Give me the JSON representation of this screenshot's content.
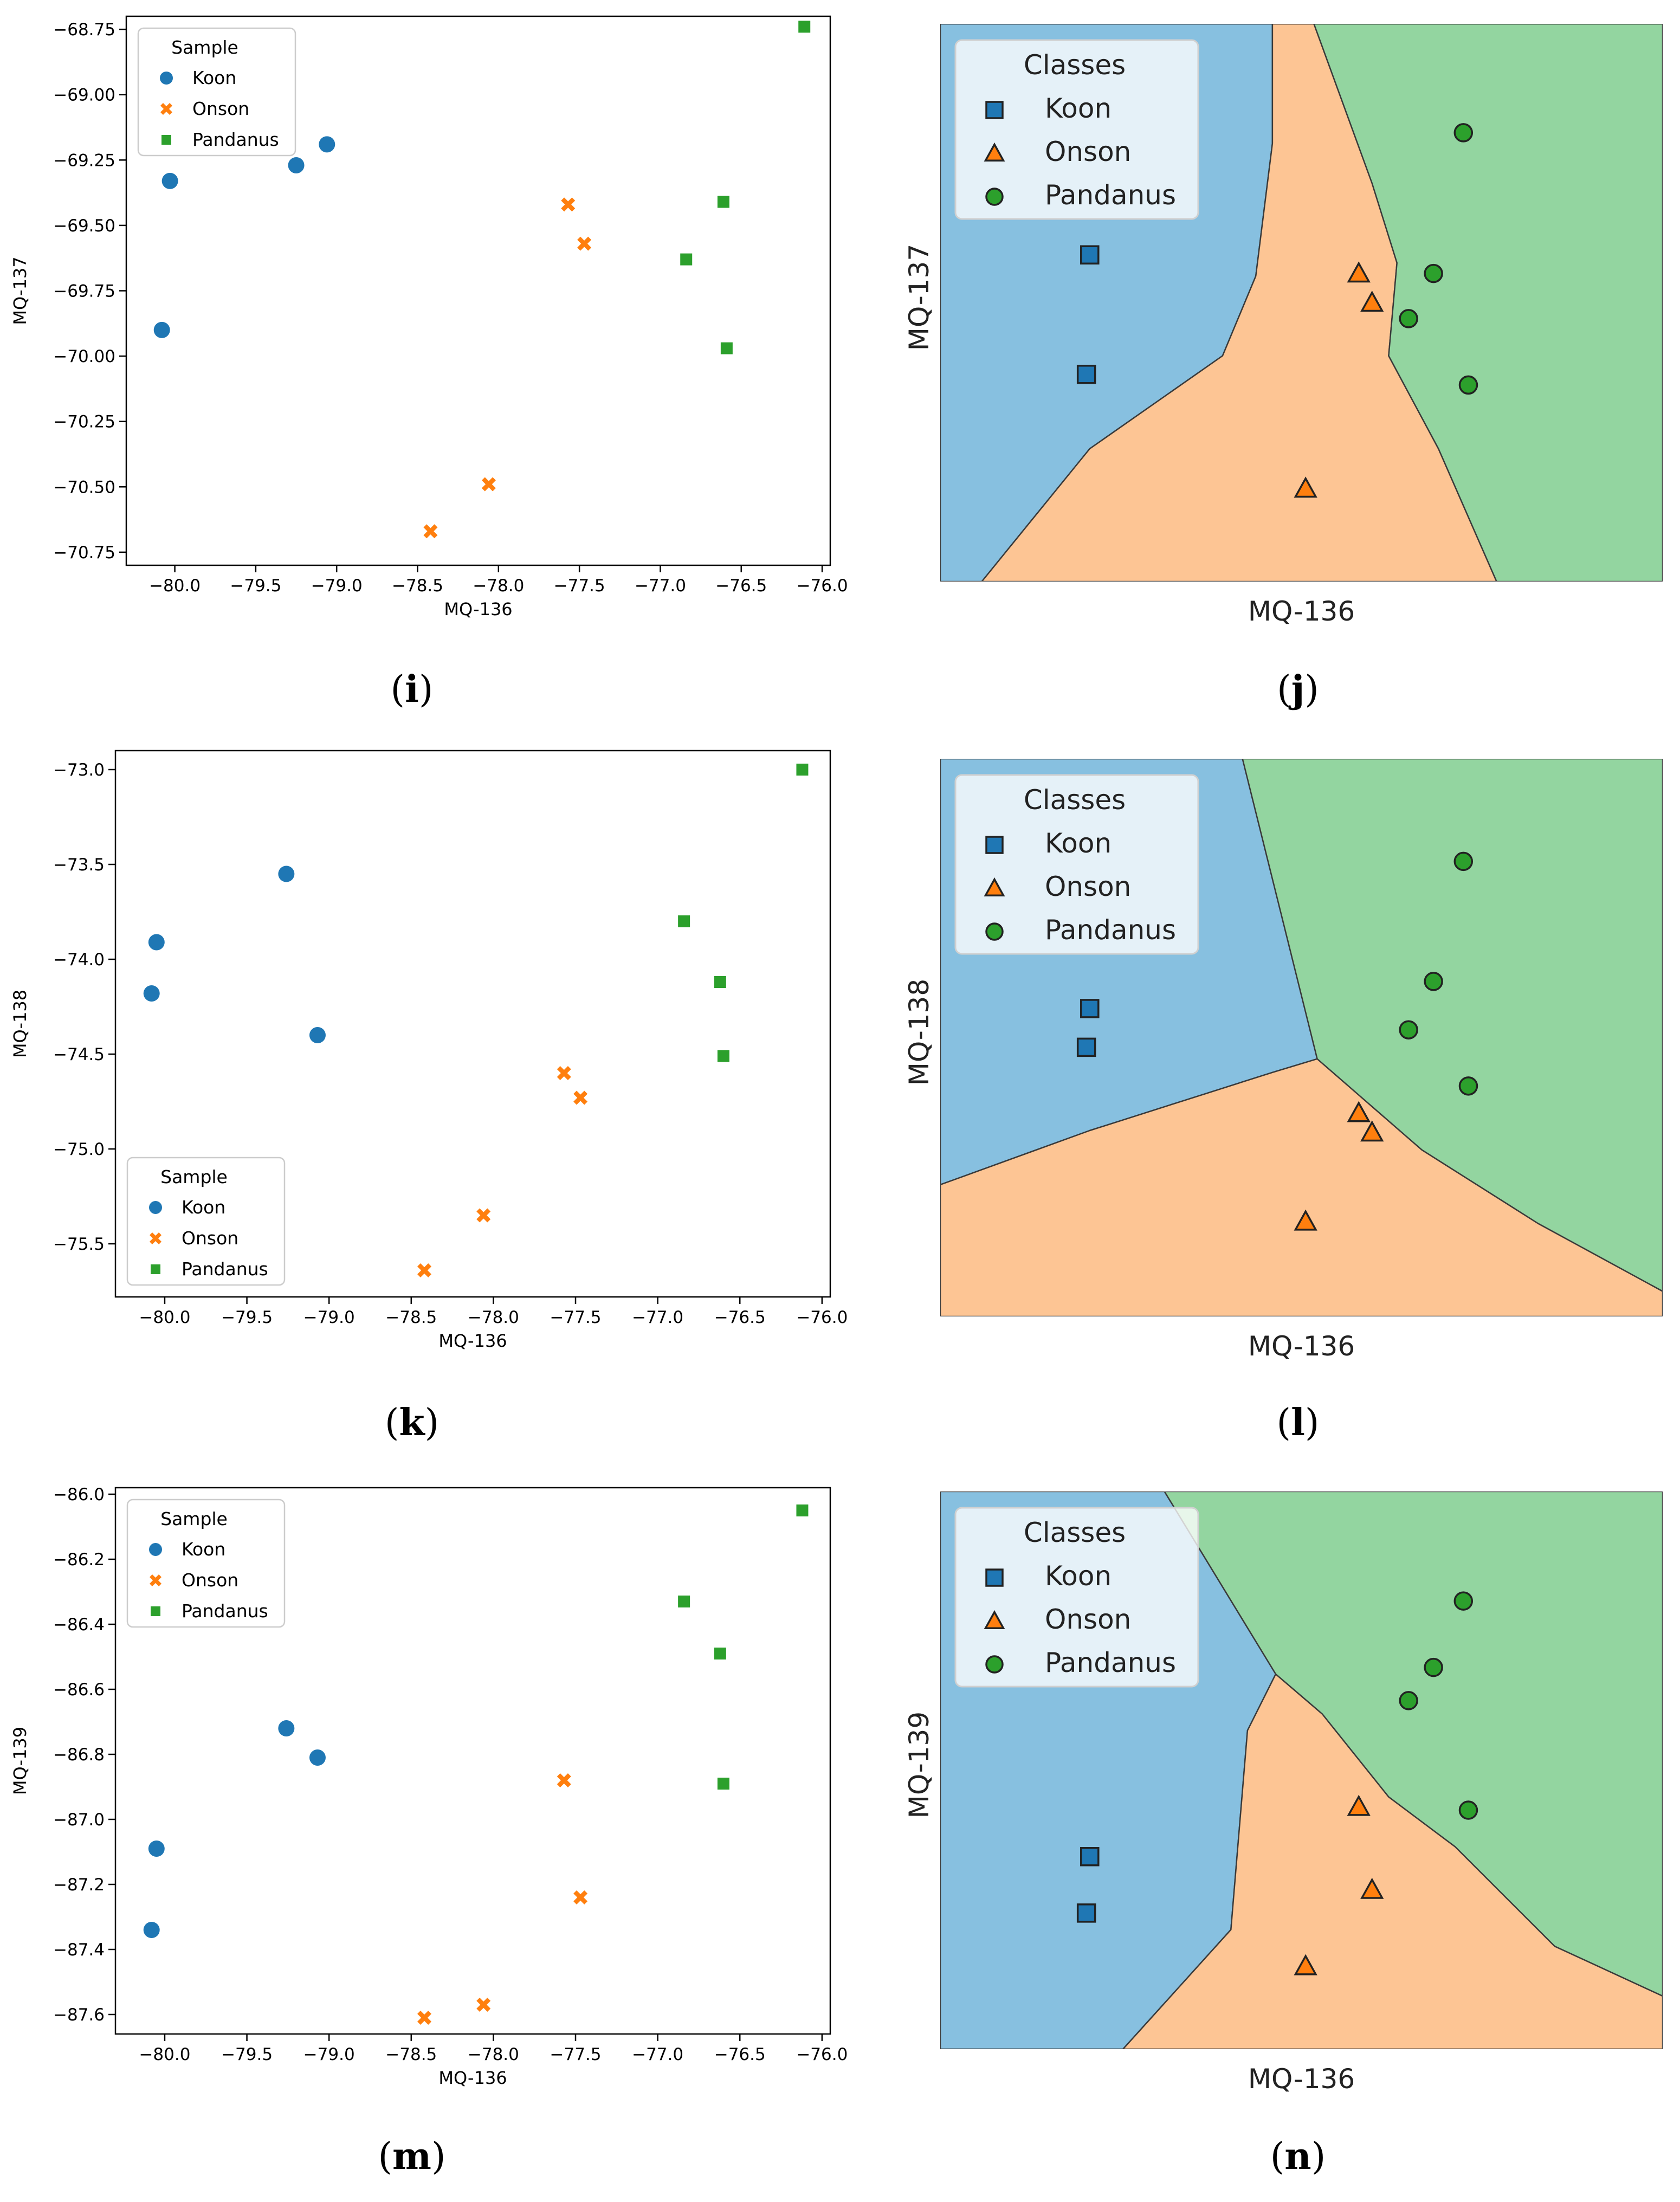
{
  "figure": {
    "panel_labels": [
      {
        "open": "(",
        "letter": "i",
        "close": ")"
      },
      {
        "open": "(",
        "letter": "j",
        "close": ")"
      },
      {
        "open": "(",
        "letter": "k",
        "close": ")"
      },
      {
        "open": "(",
        "letter": "l",
        "close": ")"
      },
      {
        "open": "(",
        "letter": "m",
        "close": ")"
      },
      {
        "open": "(",
        "letter": "n",
        "close": ")"
      }
    ]
  },
  "colors": {
    "koon": "#1f77b4",
    "onson": "#ff7f0e",
    "pandanus": "#2ca02c",
    "region_koon": "#87c0e0",
    "region_onson": "#fdc594",
    "region_pandanus": "#93d5a0"
  },
  "chart_data": [
    {
      "id": "i",
      "type": "scatter",
      "xlabel": "MQ-136",
      "ylabel": "MQ-137",
      "xlim": [
        -80.3,
        -75.95
      ],
      "ylim": [
        -70.8,
        -68.7
      ],
      "xticks": [
        -80.0,
        -79.5,
        -79.0,
        -78.5,
        -78.0,
        -77.5,
        -77.0,
        -76.5,
        -76.0
      ],
      "xtick_labels": [
        "−80.0",
        "−79.5",
        "−79.0",
        "−78.5",
        "−78.0",
        "−77.5",
        "−77.0",
        "−76.5",
        "−76.0"
      ],
      "yticks": [
        -68.75,
        -69.0,
        -69.25,
        -69.5,
        -69.75,
        -70.0,
        -70.25,
        -70.5,
        -70.75
      ],
      "ytick_labels": [
        "−68.75",
        "−69.00",
        "−69.25",
        "−69.50",
        "−69.75",
        "−70.00",
        "−70.25",
        "−70.50",
        "−70.75"
      ],
      "legend": {
        "title": "Sample",
        "position": "upper-left",
        "entries": [
          "Koon",
          "Onson",
          "Pandanus"
        ]
      },
      "series": [
        {
          "name": "Koon",
          "marker": "circle",
          "points": [
            [
              -80.03,
              -69.33
            ],
            [
              -79.25,
              -69.27
            ],
            [
              -79.06,
              -69.19
            ],
            [
              -80.08,
              -69.9
            ]
          ]
        },
        {
          "name": "Onson",
          "marker": "x",
          "points": [
            [
              -77.57,
              -69.42
            ],
            [
              -77.47,
              -69.57
            ],
            [
              -78.06,
              -70.49
            ],
            [
              -78.42,
              -70.67
            ]
          ]
        },
        {
          "name": "Pandanus",
          "marker": "square",
          "points": [
            [
              -76.11,
              -68.74
            ],
            [
              -76.61,
              -69.41
            ],
            [
              -76.84,
              -69.63
            ],
            [
              -76.59,
              -69.97
            ]
          ]
        }
      ]
    },
    {
      "id": "j",
      "type": "decision-region",
      "xlabel": "MQ-136",
      "ylabel": "MQ-137",
      "xlim": [
        -80.3,
        -75.95
      ],
      "ylim": [
        -70.8,
        -68.7
      ],
      "legend": {
        "title": "Classes",
        "position": "upper-left",
        "entries": [
          "Koon",
          "Onson",
          "Pandanus"
        ]
      },
      "series": [
        {
          "name": "Koon",
          "marker": "square",
          "points": [
            [
              -79.4,
              -69.57
            ],
            [
              -79.42,
              -70.02
            ]
          ]
        },
        {
          "name": "Onson",
          "marker": "triangle",
          "points": [
            [
              -77.78,
              -69.64
            ],
            [
              -77.7,
              -69.75
            ],
            [
              -78.1,
              -70.45
            ]
          ]
        },
        {
          "name": "Pandanus",
          "marker": "circle",
          "points": [
            [
              -77.15,
              -69.11
            ],
            [
              -77.33,
              -69.64
            ],
            [
              -77.48,
              -69.81
            ],
            [
              -77.12,
              -70.06
            ]
          ]
        }
      ],
      "regions": [
        {
          "class": "Koon",
          "polygon": [
            [
              -80.3,
              -68.7
            ],
            [
              -78.3,
              -68.7
            ],
            [
              -78.3,
              -69.15
            ],
            [
              -78.4,
              -69.65
            ],
            [
              -78.6,
              -69.95
            ],
            [
              -79.4,
              -70.3
            ],
            [
              -80.05,
              -70.8
            ],
            [
              -80.3,
              -70.8
            ]
          ]
        },
        {
          "class": "Onson",
          "polygon": [
            [
              -78.3,
              -68.7
            ],
            [
              -78.05,
              -68.7
            ],
            [
              -77.7,
              -69.3
            ],
            [
              -77.55,
              -69.6
            ],
            [
              -77.6,
              -69.95
            ],
            [
              -77.3,
              -70.3
            ],
            [
              -76.95,
              -70.8
            ],
            [
              -80.05,
              -70.8
            ],
            [
              -79.4,
              -70.3
            ],
            [
              -78.6,
              -69.95
            ],
            [
              -78.4,
              -69.65
            ],
            [
              -78.3,
              -69.15
            ]
          ]
        },
        {
          "class": "Pandanus",
          "polygon": [
            [
              -78.05,
              -68.7
            ],
            [
              -75.95,
              -68.7
            ],
            [
              -75.95,
              -70.8
            ],
            [
              -76.95,
              -70.8
            ],
            [
              -77.3,
              -70.3
            ],
            [
              -77.6,
              -69.95
            ],
            [
              -77.55,
              -69.6
            ],
            [
              -77.7,
              -69.3
            ]
          ]
        }
      ]
    },
    {
      "id": "k",
      "type": "scatter",
      "xlabel": "MQ-136",
      "ylabel": "MQ-138",
      "xlim": [
        -80.3,
        -75.95
      ],
      "ylim": [
        -75.78,
        -72.9
      ],
      "xticks": [
        -80.0,
        -79.5,
        -79.0,
        -78.5,
        -78.0,
        -77.5,
        -77.0,
        -76.5,
        -76.0
      ],
      "xtick_labels": [
        "−80.0",
        "−79.5",
        "−79.0",
        "−78.5",
        "−78.0",
        "−77.5",
        "−77.0",
        "−76.5",
        "−76.0"
      ],
      "yticks": [
        -73.0,
        -73.5,
        -74.0,
        -74.5,
        -75.0,
        -75.5
      ],
      "ytick_labels": [
        "−73.0",
        "−73.5",
        "−74.0",
        "−74.5",
        "−75.0",
        "−75.5"
      ],
      "legend": {
        "title": "Sample",
        "position": "lower-left",
        "entries": [
          "Koon",
          "Onson",
          "Pandanus"
        ]
      },
      "series": [
        {
          "name": "Koon",
          "marker": "circle",
          "points": [
            [
              -79.26,
              -73.55
            ],
            [
              -80.05,
              -73.91
            ],
            [
              -80.08,
              -74.18
            ],
            [
              -79.07,
              -74.4
            ]
          ]
        },
        {
          "name": "Onson",
          "marker": "x",
          "points": [
            [
              -77.57,
              -74.6
            ],
            [
              -77.47,
              -74.73
            ],
            [
              -78.06,
              -75.35
            ],
            [
              -78.42,
              -75.64
            ]
          ]
        },
        {
          "name": "Pandanus",
          "marker": "square",
          "points": [
            [
              -76.12,
              -73.0
            ],
            [
              -76.84,
              -73.8
            ],
            [
              -76.62,
              -74.12
            ],
            [
              -76.6,
              -74.51
            ]
          ]
        }
      ]
    },
    {
      "id": "l",
      "type": "decision-region",
      "xlabel": "MQ-136",
      "ylabel": "MQ-138",
      "xlim": [
        -80.3,
        -75.95
      ],
      "ylim": [
        -75.78,
        -72.9
      ],
      "legend": {
        "title": "Classes",
        "position": "upper-left",
        "entries": [
          "Koon",
          "Onson",
          "Pandanus"
        ]
      },
      "series": [
        {
          "name": "Koon",
          "marker": "square",
          "points": [
            [
              -79.4,
              -74.19
            ],
            [
              -79.42,
              -74.39
            ]
          ]
        },
        {
          "name": "Onson",
          "marker": "triangle",
          "points": [
            [
              -77.78,
              -74.73
            ],
            [
              -77.7,
              -74.83
            ],
            [
              -78.1,
              -75.29
            ]
          ]
        },
        {
          "name": "Pandanus",
          "marker": "circle",
          "points": [
            [
              -77.15,
              -73.43
            ],
            [
              -77.33,
              -74.05
            ],
            [
              -77.48,
              -74.3
            ],
            [
              -77.12,
              -74.59
            ]
          ]
        }
      ],
      "regions": [
        {
          "class": "Koon",
          "polygon": [
            [
              -80.3,
              -72.9
            ],
            [
              -78.48,
              -72.9
            ],
            [
              -78.03,
              -74.45
            ],
            [
              -78.3,
              -74.52
            ],
            [
              -79.4,
              -74.82
            ],
            [
              -80.3,
              -75.1
            ],
            [
              -80.3,
              -72.9
            ]
          ]
        },
        {
          "class": "Onson",
          "polygon": [
            [
              -80.3,
              -75.1
            ],
            [
              -79.4,
              -74.82
            ],
            [
              -78.3,
              -74.52
            ],
            [
              -78.03,
              -74.45
            ],
            [
              -77.4,
              -74.92
            ],
            [
              -76.7,
              -75.3
            ],
            [
              -75.95,
              -75.65
            ],
            [
              -75.95,
              -75.78
            ],
            [
              -80.3,
              -75.78
            ]
          ]
        },
        {
          "class": "Pandanus",
          "polygon": [
            [
              -78.48,
              -72.9
            ],
            [
              -75.95,
              -72.9
            ],
            [
              -75.95,
              -75.65
            ],
            [
              -76.7,
              -75.3
            ],
            [
              -77.4,
              -74.92
            ],
            [
              -78.03,
              -74.45
            ]
          ]
        }
      ]
    },
    {
      "id": "m",
      "type": "scatter",
      "xlabel": "MQ-136",
      "ylabel": "MQ-139",
      "xlim": [
        -80.3,
        -75.95
      ],
      "ylim": [
        -87.66,
        -85.98
      ],
      "xticks": [
        -80.0,
        -79.5,
        -79.0,
        -78.5,
        -78.0,
        -77.5,
        -77.0,
        -76.5,
        -76.0
      ],
      "xtick_labels": [
        "−80.0",
        "−79.5",
        "−79.0",
        "−78.5",
        "−78.0",
        "−77.5",
        "−77.0",
        "−76.5",
        "−76.0"
      ],
      "yticks": [
        -86.0,
        -86.2,
        -86.4,
        -86.6,
        -86.8,
        -87.0,
        -87.2,
        -87.4,
        -87.6
      ],
      "ytick_labels": [
        "−86.0",
        "−86.2",
        "−86.4",
        "−86.6",
        "−86.8",
        "−87.0",
        "−87.2",
        "−87.4",
        "−87.6"
      ],
      "legend": {
        "title": "Sample",
        "position": "upper-left",
        "entries": [
          "Koon",
          "Onson",
          "Pandanus"
        ]
      },
      "series": [
        {
          "name": "Koon",
          "marker": "circle",
          "points": [
            [
              -79.26,
              -86.72
            ],
            [
              -79.07,
              -86.81
            ],
            [
              -80.05,
              -87.09
            ],
            [
              -80.08,
              -87.34
            ]
          ]
        },
        {
          "name": "Onson",
          "marker": "x",
          "points": [
            [
              -77.57,
              -86.88
            ],
            [
              -77.47,
              -87.24
            ],
            [
              -78.06,
              -87.57
            ],
            [
              -78.42,
              -87.61
            ]
          ]
        },
        {
          "name": "Pandanus",
          "marker": "square",
          "points": [
            [
              -76.12,
              -86.05
            ],
            [
              -76.84,
              -86.33
            ],
            [
              -76.62,
              -86.49
            ],
            [
              -76.6,
              -86.89
            ]
          ]
        }
      ]
    },
    {
      "id": "n",
      "type": "decision-region",
      "xlabel": "MQ-136",
      "ylabel": "MQ-139",
      "xlim": [
        -80.3,
        -75.95
      ],
      "ylim": [
        -87.66,
        -85.98
      ],
      "legend": {
        "title": "Classes",
        "position": "upper-left",
        "entries": [
          "Koon",
          "Onson",
          "Pandanus"
        ]
      },
      "series": [
        {
          "name": "Koon",
          "marker": "square",
          "points": [
            [
              -79.4,
              -87.08
            ],
            [
              -79.42,
              -87.25
            ]
          ]
        },
        {
          "name": "Onson",
          "marker": "triangle",
          "points": [
            [
              -77.78,
              -86.93
            ],
            [
              -77.7,
              -87.18
            ],
            [
              -78.1,
              -87.41
            ]
          ]
        },
        {
          "name": "Pandanus",
          "marker": "circle",
          "points": [
            [
              -77.15,
              -86.31
            ],
            [
              -77.33,
              -86.51
            ],
            [
              -77.48,
              -86.61
            ],
            [
              -77.12,
              -86.94
            ]
          ]
        }
      ],
      "regions": [
        {
          "class": "Koon",
          "polygon": [
            [
              -80.3,
              -85.98
            ],
            [
              -78.95,
              -85.98
            ],
            [
              -78.28,
              -86.53
            ],
            [
              -78.45,
              -86.7
            ],
            [
              -78.5,
              -87.0
            ],
            [
              -78.55,
              -87.3
            ],
            [
              -79.2,
              -87.66
            ],
            [
              -80.3,
              -87.66
            ]
          ]
        },
        {
          "class": "Onson",
          "polygon": [
            [
              -78.28,
              -86.53
            ],
            [
              -78.0,
              -86.65
            ],
            [
              -77.6,
              -86.9
            ],
            [
              -77.2,
              -87.05
            ],
            [
              -76.6,
              -87.35
            ],
            [
              -75.95,
              -87.5
            ],
            [
              -75.95,
              -87.66
            ],
            [
              -79.2,
              -87.66
            ],
            [
              -78.55,
              -87.3
            ],
            [
              -78.5,
              -87.0
            ],
            [
              -78.45,
              -86.7
            ]
          ]
        },
        {
          "class": "Pandanus",
          "polygon": [
            [
              -78.95,
              -85.98
            ],
            [
              -75.95,
              -85.98
            ],
            [
              -75.95,
              -87.5
            ],
            [
              -76.6,
              -87.35
            ],
            [
              -77.2,
              -87.05
            ],
            [
              -77.6,
              -86.9
            ],
            [
              -78.0,
              -86.65
            ],
            [
              -78.28,
              -86.53
            ]
          ]
        }
      ]
    }
  ]
}
